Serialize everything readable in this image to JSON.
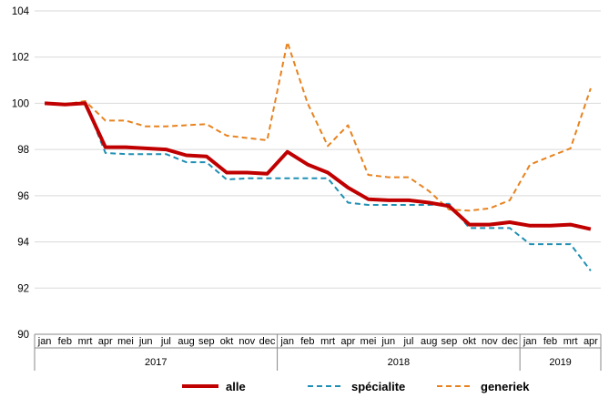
{
  "chart_data": {
    "type": "line",
    "categories": [
      "jan",
      "feb",
      "mrt",
      "apr",
      "mei",
      "jun",
      "jul",
      "aug",
      "sep",
      "okt",
      "nov",
      "dec",
      "jan",
      "feb",
      "mrt",
      "apr",
      "mei",
      "jun",
      "jul",
      "aug",
      "sep",
      "okt",
      "nov",
      "dec",
      "jan",
      "feb",
      "mrt",
      "apr"
    ],
    "years": [
      {
        "label": "2017",
        "start": 0,
        "end": 11
      },
      {
        "label": "2018",
        "start": 12,
        "end": 23
      },
      {
        "label": "2019",
        "start": 24,
        "end": 27
      }
    ],
    "ylim": [
      90,
      104
    ],
    "yticks": [
      "90",
      "92",
      "94",
      "96",
      "98",
      "100",
      "102",
      "104"
    ],
    "grid": true,
    "legend_position": "bottom",
    "series": [
      {
        "name": "alle",
        "color": "#c00000",
        "style": "solid",
        "values": [
          100.0,
          99.95,
          100.0,
          98.1,
          98.1,
          98.05,
          98.0,
          97.75,
          97.7,
          97.0,
          97.0,
          96.95,
          97.9,
          97.35,
          97.0,
          96.35,
          95.85,
          95.8,
          95.8,
          95.7,
          95.55,
          94.75,
          94.75,
          94.85,
          94.7,
          94.7,
          94.75,
          94.55
        ]
      },
      {
        "name": "spécialite",
        "color": "#1f8fb3",
        "style": "dash",
        "values": [
          100.0,
          99.95,
          100.05,
          97.85,
          97.8,
          97.8,
          97.8,
          97.45,
          97.45,
          96.7,
          96.75,
          96.75,
          96.75,
          96.75,
          96.75,
          95.7,
          95.6,
          95.6,
          95.6,
          95.6,
          95.65,
          94.6,
          94.6,
          94.6,
          93.9,
          93.9,
          93.9,
          92.75
        ]
      },
      {
        "name": "generiek",
        "color": "#e8821e",
        "style": "dash",
        "values": [
          100.0,
          99.95,
          100.1,
          99.25,
          99.25,
          99.0,
          99.0,
          99.05,
          99.1,
          98.6,
          98.5,
          98.4,
          102.65,
          100.0,
          98.15,
          99.05,
          96.9,
          96.8,
          96.8,
          96.2,
          95.4,
          95.35,
          95.45,
          95.8,
          97.35,
          97.7,
          98.05,
          100.65
        ]
      }
    ]
  }
}
